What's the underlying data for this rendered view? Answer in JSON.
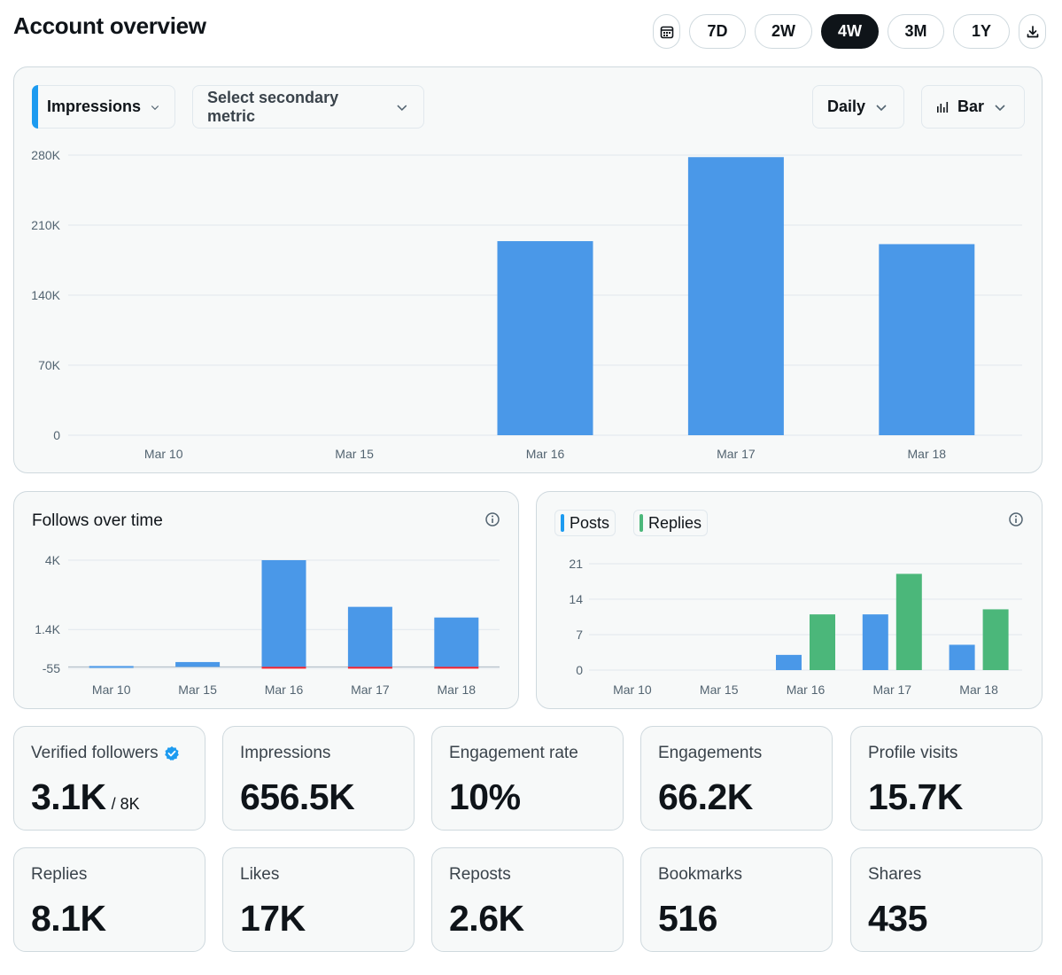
{
  "header": {
    "title": "Account overview",
    "ranges": [
      "7D",
      "2W",
      "4W",
      "3M",
      "1Y"
    ],
    "active_range": "4W"
  },
  "controls": {
    "primary_metric": "Impressions",
    "secondary_metric": "Select secondary metric",
    "interval": "Daily",
    "chart_type": "Bar"
  },
  "colors": {
    "blue": "#4a98e8",
    "green": "#4bb77a",
    "red": "#f4212e",
    "dark": "#0f1419"
  },
  "chart_data": [
    {
      "id": "impressions",
      "type": "bar",
      "title": "Impressions",
      "categories": [
        "Mar 10",
        "Mar 15",
        "Mar 16",
        "Mar 17",
        "Mar 18"
      ],
      "values": [
        0,
        0,
        194000,
        278000,
        191000
      ],
      "yticks": [
        0,
        70000,
        140000,
        210000,
        280000
      ],
      "ytick_labels": [
        "0",
        "70K",
        "140K",
        "210K",
        "280K"
      ],
      "ylim": [
        0,
        280000
      ]
    },
    {
      "id": "follows",
      "type": "bar",
      "title": "Follows over time",
      "categories": [
        "Mar 10",
        "Mar 15",
        "Mar 16",
        "Mar 17",
        "Mar 18"
      ],
      "values": [
        30,
        180,
        4000,
        2250,
        1850
      ],
      "losses": [
        0,
        0,
        55,
        55,
        55
      ],
      "yticks": [
        -55,
        1400,
        4000
      ],
      "ytick_labels": [
        "-55",
        "1.4K",
        "4K"
      ],
      "ylim": [
        -55,
        4000
      ]
    },
    {
      "id": "posts_replies",
      "type": "bar",
      "categories": [
        "Mar 10",
        "Mar 15",
        "Mar 16",
        "Mar 17",
        "Mar 18"
      ],
      "series": [
        {
          "name": "Posts",
          "values": [
            0,
            0,
            3,
            11,
            5
          ]
        },
        {
          "name": "Replies",
          "values": [
            0,
            0,
            11,
            19,
            12
          ]
        }
      ],
      "yticks": [
        0,
        7,
        14,
        21
      ],
      "ytick_labels": [
        "0",
        "7",
        "14",
        "21"
      ],
      "ylim": [
        0,
        21
      ]
    }
  ],
  "stats": [
    {
      "label": "Verified followers",
      "value": "3.1K",
      "sub": "/ 8K",
      "verified": true
    },
    {
      "label": "Impressions",
      "value": "656.5K"
    },
    {
      "label": "Engagement rate",
      "value": "10%"
    },
    {
      "label": "Engagements",
      "value": "66.2K"
    },
    {
      "label": "Profile visits",
      "value": "15.7K"
    },
    {
      "label": "Replies",
      "value": "8.1K"
    },
    {
      "label": "Likes",
      "value": "17K"
    },
    {
      "label": "Reposts",
      "value": "2.6K"
    },
    {
      "label": "Bookmarks",
      "value": "516"
    },
    {
      "label": "Shares",
      "value": "435"
    }
  ]
}
